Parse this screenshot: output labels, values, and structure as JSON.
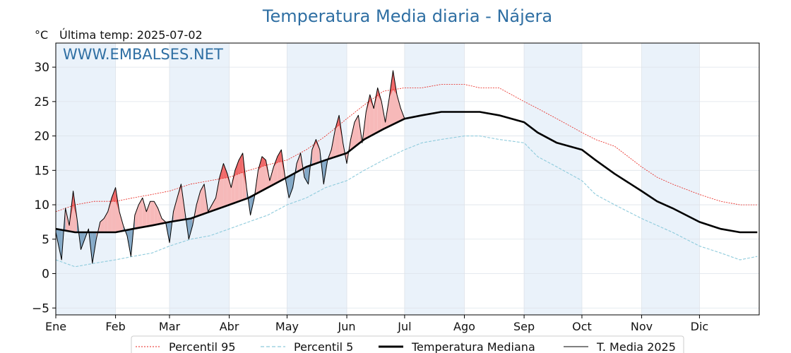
{
  "chart_data": {
    "type": "line",
    "title": "Temperatura Media diaria - Nájera",
    "unit_label": "°C",
    "last_temp_label": "Última temp: 2025-07-02",
    "watermark": "WWW.EMBALSES.NET",
    "ylim": [
      -6,
      33.5
    ],
    "yticks": [
      -5,
      0,
      5,
      10,
      15,
      20,
      25,
      30
    ],
    "xlim": [
      0,
      365
    ],
    "months": [
      {
        "label": "Ene",
        "day": 0
      },
      {
        "label": "Feb",
        "day": 31
      },
      {
        "label": "Mar",
        "day": 59
      },
      {
        "label": "Abr",
        "day": 90
      },
      {
        "label": "May",
        "day": 120
      },
      {
        "label": "Jun",
        "day": 151
      },
      {
        "label": "Jul",
        "day": 181
      },
      {
        "label": "Ago",
        "day": 212
      },
      {
        "label": "Sep",
        "day": 243
      },
      {
        "label": "Oct",
        "day": 273
      },
      {
        "label": "Nov",
        "day": 304
      },
      {
        "label": "Dic",
        "day": 334
      }
    ],
    "grid": true,
    "legend_position": "bottom-center",
    "colors": {
      "p95": "#e8231c",
      "p5": "#8ecbdc",
      "median": "#000000",
      "t2025": "#000000",
      "above": "#f7b5b5",
      "above_strong": "#f06a6a",
      "below": "#7ea4c4",
      "band": "#eaf2fa"
    },
    "series": [
      {
        "name": "Percentil 95",
        "x": [
          0,
          10,
          20,
          31,
          40,
          50,
          59,
          70,
          80,
          90,
          100,
          110,
          120,
          130,
          140,
          151,
          160,
          170,
          181,
          190,
          200,
          212,
          220,
          230,
          243,
          250,
          260,
          273,
          280,
          290,
          304,
          312,
          320,
          334,
          345,
          355,
          364
        ],
        "values": [
          9.0,
          10.0,
          10.5,
          10.5,
          11.0,
          11.5,
          12.0,
          13.0,
          13.5,
          14.0,
          15.0,
          15.8,
          16.5,
          18.0,
          20.0,
          22.5,
          24.5,
          26.5,
          27.0,
          27.0,
          27.5,
          27.5,
          27.0,
          27.0,
          25.0,
          24.0,
          22.5,
          20.5,
          19.5,
          18.5,
          15.5,
          14.0,
          13.0,
          11.5,
          10.5,
          10.0,
          10.0
        ]
      },
      {
        "name": "Percentil 5",
        "x": [
          0,
          10,
          20,
          31,
          40,
          50,
          59,
          70,
          80,
          90,
          100,
          110,
          120,
          130,
          140,
          151,
          160,
          170,
          181,
          190,
          200,
          212,
          220,
          230,
          243,
          250,
          260,
          273,
          280,
          290,
          304,
          312,
          320,
          334,
          345,
          355,
          364
        ],
        "values": [
          2.0,
          1.0,
          1.5,
          2.0,
          2.5,
          3.0,
          4.0,
          5.0,
          5.5,
          6.5,
          7.5,
          8.5,
          10.0,
          11.0,
          12.5,
          13.5,
          15.0,
          16.5,
          18.0,
          19.0,
          19.5,
          20.0,
          20.0,
          19.5,
          19.0,
          17.0,
          15.5,
          13.5,
          11.5,
          10.0,
          8.0,
          7.0,
          6.0,
          4.0,
          3.0,
          2.0,
          2.5
        ]
      },
      {
        "name": "Temperatura Mediana",
        "x": [
          0,
          10,
          20,
          31,
          40,
          50,
          59,
          70,
          80,
          90,
          100,
          110,
          120,
          130,
          140,
          151,
          160,
          170,
          181,
          190,
          200,
          212,
          220,
          230,
          243,
          250,
          260,
          273,
          280,
          290,
          304,
          312,
          320,
          334,
          345,
          355,
          364
        ],
        "values": [
          6.5,
          6.0,
          6.0,
          6.0,
          6.5,
          7.0,
          7.5,
          8.0,
          9.0,
          10.0,
          11.0,
          12.5,
          14.0,
          15.5,
          16.5,
          17.5,
          19.5,
          21.0,
          22.5,
          23.0,
          23.5,
          23.5,
          23.5,
          23.0,
          22.0,
          20.5,
          19.0,
          18.0,
          16.5,
          14.5,
          12.0,
          10.5,
          9.5,
          7.5,
          6.5,
          6.0,
          6.0
        ]
      },
      {
        "name": "T. Media 2025",
        "x": [
          0,
          3,
          5,
          7,
          9,
          11,
          13,
          15,
          17,
          19,
          21,
          23,
          25,
          27,
          29,
          31,
          33,
          35,
          37,
          39,
          41,
          43,
          45,
          47,
          49,
          51,
          53,
          55,
          57,
          59,
          61,
          63,
          65,
          67,
          69,
          71,
          73,
          75,
          77,
          79,
          81,
          83,
          85,
          87,
          89,
          91,
          93,
          95,
          97,
          99,
          101,
          103,
          105,
          107,
          109,
          111,
          113,
          115,
          117,
          119,
          121,
          123,
          125,
          127,
          129,
          131,
          133,
          135,
          137,
          139,
          141,
          143,
          145,
          147,
          149,
          151,
          153,
          155,
          157,
          159,
          161,
          163,
          165,
          167,
          169,
          171,
          173,
          175,
          177,
          179,
          181
        ],
        "values": [
          6.0,
          2.0,
          9.5,
          7.0,
          12.0,
          8.0,
          3.5,
          5.0,
          6.5,
          1.5,
          5.0,
          7.5,
          8.0,
          9.0,
          11.0,
          12.5,
          9.0,
          7.0,
          5.5,
          2.5,
          8.5,
          10.0,
          11.0,
          9.0,
          10.5,
          10.5,
          9.5,
          8.0,
          7.5,
          4.5,
          9.0,
          11.0,
          13.0,
          9.0,
          5.0,
          7.0,
          10.0,
          12.0,
          13.0,
          9.0,
          10.0,
          11.0,
          14.0,
          16.0,
          14.5,
          12.5,
          15.0,
          16.5,
          17.5,
          12.5,
          8.5,
          11.0,
          15.0,
          17.0,
          16.5,
          13.5,
          15.5,
          17.0,
          18.0,
          14.0,
          11.0,
          12.5,
          16.0,
          17.5,
          14.0,
          13.0,
          18.0,
          19.5,
          18.0,
          13.0,
          16.5,
          18.0,
          21.0,
          23.0,
          19.0,
          16.0,
          19.5,
          22.0,
          23.0,
          19.0,
          23.5,
          26.0,
          24.0,
          27.0,
          25.0,
          22.0,
          25.5,
          29.5,
          26.0,
          24.0,
          22.5
        ]
      }
    ]
  }
}
